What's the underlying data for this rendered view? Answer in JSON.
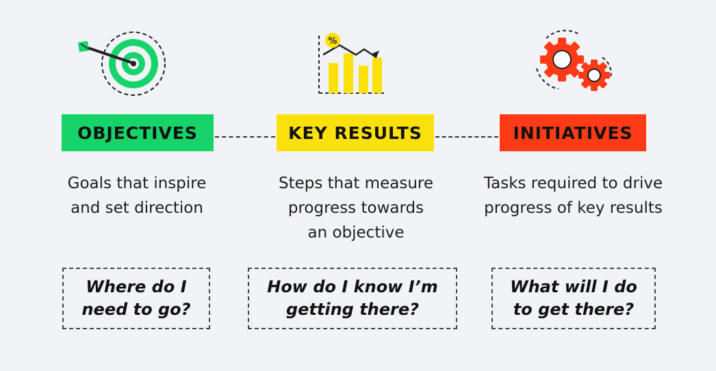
{
  "colors": {
    "background": "#f2f3f7",
    "objectives": "#17d46a",
    "key_results": "#fbe10c",
    "initiatives": "#ff3b17"
  },
  "icons": [
    "target-icon",
    "chart-icon",
    "gears-icon"
  ],
  "columns": [
    {
      "title": "OBJECTIVES",
      "description": [
        "Goals that inspire",
        "and set direction"
      ],
      "question": [
        "Where do I",
        "need to go?"
      ]
    },
    {
      "title": "KEY RESULTS",
      "description": [
        "Steps that measure",
        "progress towards",
        "an objective"
      ],
      "question": [
        "How do I know I’m",
        "getting there?"
      ]
    },
    {
      "title": "INITIATIVES",
      "description": [
        "Tasks required to drive",
        "progress of key results"
      ],
      "question": [
        "What will I do",
        "to get there?"
      ]
    }
  ]
}
